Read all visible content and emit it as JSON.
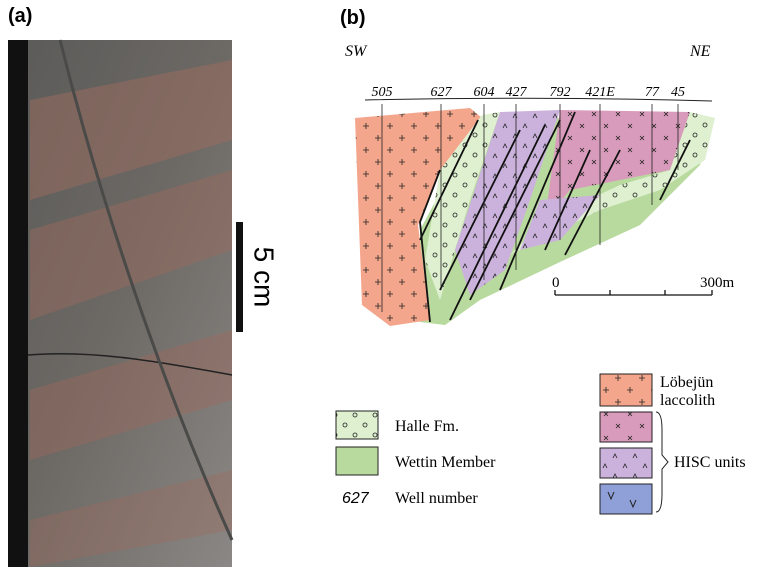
{
  "panel_a": {
    "label": "(a)",
    "scale_bar": "5 cm"
  },
  "panel_b": {
    "label": "(b)",
    "directions": [
      "SW",
      "NE"
    ],
    "wells": [
      "505",
      "627",
      "604",
      "427",
      "792",
      "421E",
      "77",
      "45"
    ],
    "scale": {
      "start": "0",
      "end": "300m"
    },
    "legend": {
      "halle": "Halle Fm.",
      "wettin": "Wettin Member",
      "well_sample": "627",
      "well_label": "Well number",
      "lobejun": [
        "Löbejün",
        "laccolith"
      ],
      "hisc": "HISC units"
    }
  }
}
